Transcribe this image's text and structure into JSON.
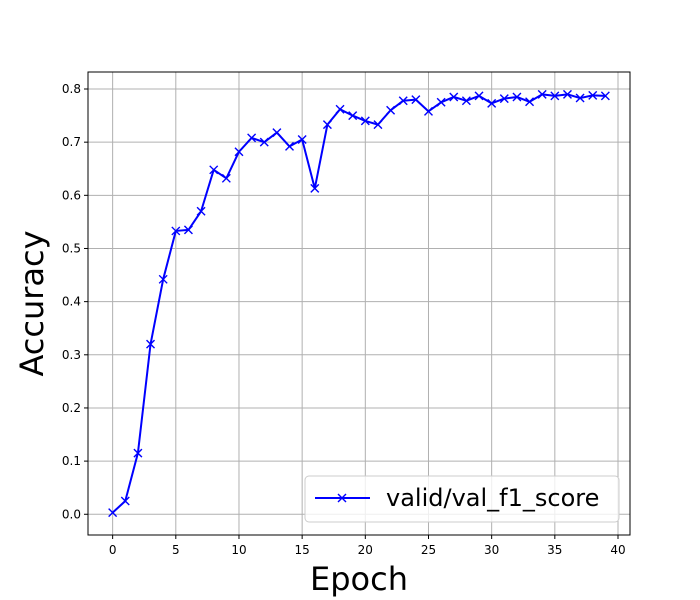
{
  "chart_data": {
    "type": "line",
    "title": "",
    "xlabel": "Epoch",
    "ylabel": "Accuracy",
    "xlim": [
      -1.95,
      40.95
    ],
    "ylim": [
      -0.039,
      0.832
    ],
    "xticks": [
      0,
      5,
      10,
      15,
      20,
      25,
      30,
      35,
      40
    ],
    "yticks": [
      0.0,
      0.1,
      0.2,
      0.3,
      0.4,
      0.5,
      0.6,
      0.7,
      0.8
    ],
    "xtick_labels": [
      "0",
      "5",
      "10",
      "15",
      "20",
      "25",
      "30",
      "35",
      "40"
    ],
    "ytick_labels": [
      "0.0",
      "0.1",
      "0.2",
      "0.3",
      "0.4",
      "0.5",
      "0.6",
      "0.7",
      "0.8"
    ],
    "grid": true,
    "legend_position": "bottom-right",
    "series": [
      {
        "name": "valid/val_f1_score",
        "color": "#0000ff",
        "marker": "x",
        "x": [
          0,
          1,
          2,
          3,
          4,
          5,
          6,
          7,
          8,
          9,
          10,
          11,
          12,
          13,
          14,
          15,
          16,
          17,
          18,
          19,
          20,
          21,
          22,
          23,
          24,
          25,
          26,
          27,
          28,
          29,
          30,
          31,
          32,
          33,
          34,
          35,
          36,
          37,
          38,
          39
        ],
        "y": [
          0.003,
          0.025,
          0.115,
          0.32,
          0.442,
          0.533,
          0.535,
          0.57,
          0.648,
          0.632,
          0.682,
          0.708,
          0.7,
          0.718,
          0.692,
          0.705,
          0.613,
          0.733,
          0.762,
          0.75,
          0.74,
          0.733,
          0.76,
          0.778,
          0.78,
          0.758,
          0.775,
          0.785,
          0.778,
          0.787,
          0.773,
          0.782,
          0.785,
          0.776,
          0.79,
          0.787,
          0.79,
          0.783,
          0.788,
          0.787
        ]
      }
    ]
  }
}
